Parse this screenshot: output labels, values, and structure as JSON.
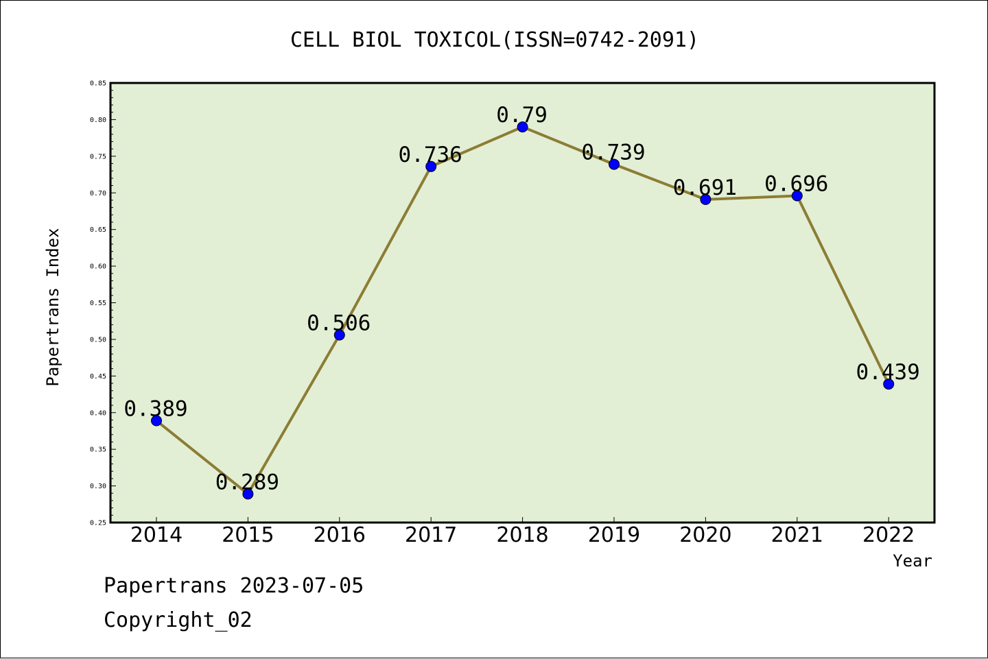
{
  "chart_data": {
    "type": "line",
    "title": "CELL BIOL TOXICOL(ISSN=0742-2091)",
    "xlabel": "Year",
    "ylabel": "Papertrans Index",
    "categories": [
      "2014",
      "2015",
      "2016",
      "2017",
      "2018",
      "2019",
      "2020",
      "2021",
      "2022"
    ],
    "series": [
      {
        "values": [
          0.389,
          0.289,
          0.506,
          0.736,
          0.79,
          0.739,
          0.691,
          0.696,
          0.439
        ]
      }
    ],
    "data_labels": [
      "0.389",
      "0.289",
      "0.506",
      "0.736",
      "0.79",
      "0.739",
      "0.691",
      "0.696",
      "0.439"
    ],
    "ylim": [
      0.25,
      0.85
    ],
    "yticks": [
      "0.25",
      "0.30",
      "0.35",
      "0.40",
      "0.45",
      "0.50",
      "0.55",
      "0.60",
      "0.65",
      "0.70",
      "0.75",
      "0.80",
      "0.85"
    ],
    "grid": false,
    "colors": {
      "plot_background": "#e2efd5",
      "line": "#8c7d35",
      "marker": "#0000ff"
    }
  },
  "footer": {
    "line1": "Papertrans 2023-07-05",
    "line2": "Copyright_02"
  }
}
